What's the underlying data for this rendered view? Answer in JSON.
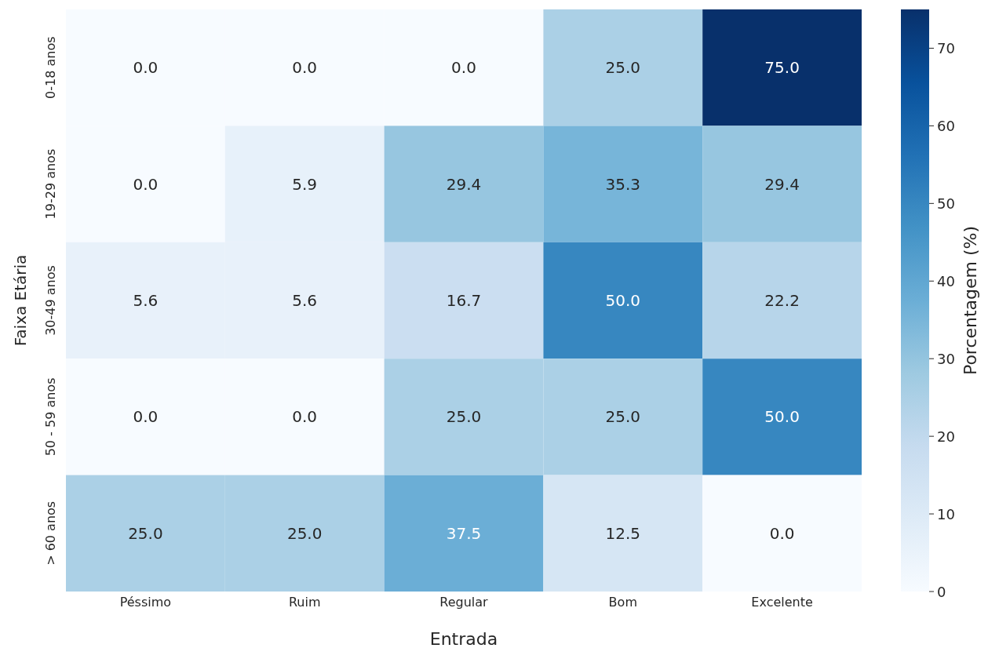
{
  "chart_data": {
    "type": "heatmap",
    "xlabel": "Entrada",
    "ylabel": "Faixa Etária",
    "clabel": "Porcentagem (%)",
    "categories": [
      "Péssimo",
      "Ruim",
      "Regular",
      "Bom",
      "Excelente"
    ],
    "y_categories": [
      "0-18 anos",
      "19-29 anos",
      "30-49 anos",
      "50 - 59 anos",
      "> 60 anos"
    ],
    "cells": [
      [
        0.0,
        0.0,
        0.0,
        25.0,
        75.0
      ],
      [
        0.0,
        5.9,
        29.4,
        35.3,
        29.4
      ],
      [
        5.6,
        5.6,
        16.7,
        50.0,
        22.2
      ],
      [
        0.0,
        0.0,
        25.0,
        25.0,
        50.0
      ],
      [
        25.0,
        25.0,
        37.5,
        12.5,
        0.0
      ]
    ],
    "cell_labels": [
      [
        "0.0",
        "0.0",
        "0.0",
        "25.0",
        "75.0"
      ],
      [
        "0.0",
        "5.9",
        "29.4",
        "35.3",
        "29.4"
      ],
      [
        "5.6",
        "5.6",
        "16.7",
        "50.0",
        "22.2"
      ],
      [
        "0.0",
        "0.0",
        "25.0",
        "25.0",
        "50.0"
      ],
      [
        "25.0",
        "25.0",
        "37.5",
        "12.5",
        "0.0"
      ]
    ],
    "clim": [
      0,
      75
    ],
    "cticks": [
      0,
      10,
      20,
      30,
      40,
      50,
      60,
      70
    ]
  }
}
